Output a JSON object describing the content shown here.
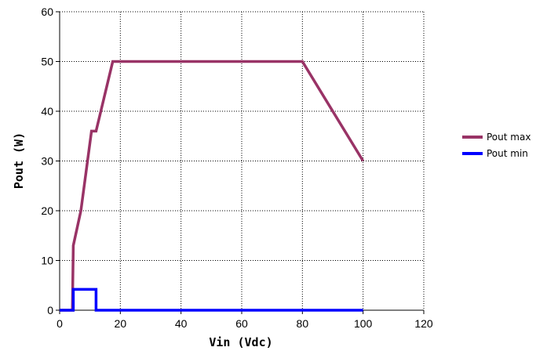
{
  "chart_data": {
    "type": "line",
    "title": "",
    "xlabel": "Vin (Vdc)",
    "ylabel": "Pout (W)",
    "xlim": [
      0,
      120
    ],
    "ylim": [
      0,
      60
    ],
    "x_ticks": [
      0,
      20,
      40,
      60,
      80,
      100,
      120
    ],
    "y_ticks": [
      0,
      10,
      20,
      30,
      40,
      50,
      60
    ],
    "grid": true,
    "grid_style": "dotted",
    "legend_position": "right",
    "series": [
      {
        "name": "Pout max",
        "color": "#993366",
        "points": [
          [
            0,
            0
          ],
          [
            4.2,
            0
          ],
          [
            4.5,
            13
          ],
          [
            7,
            20
          ],
          [
            10.5,
            36
          ],
          [
            12,
            36
          ],
          [
            17.5,
            50
          ],
          [
            80,
            50
          ],
          [
            100,
            30
          ]
        ]
      },
      {
        "name": "Pout min",
        "color": "#0000ff",
        "points": [
          [
            0,
            0
          ],
          [
            4.5,
            0
          ],
          [
            4.5,
            4.2
          ],
          [
            12,
            4.2
          ],
          [
            12,
            0
          ],
          [
            100,
            0
          ]
        ]
      }
    ]
  }
}
